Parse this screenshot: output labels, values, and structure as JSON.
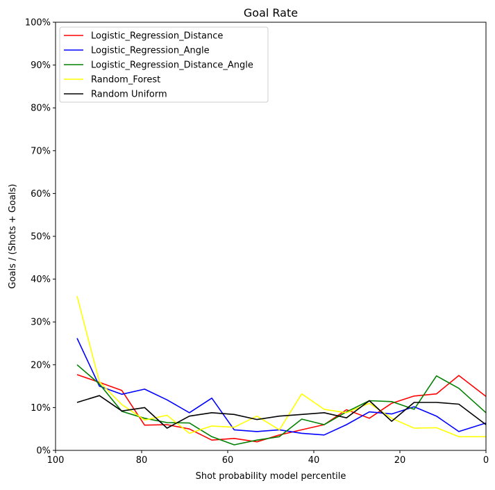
{
  "chart_data": {
    "type": "line",
    "title": "Goal Rate",
    "xlabel": "Shot probability model percentile",
    "ylabel": "Goals / (Shots + Goals)",
    "xlim": [
      100,
      0
    ],
    "ylim": [
      0,
      1
    ],
    "x_ticks": [
      100,
      80,
      60,
      40,
      20,
      0
    ],
    "x_tick_labels": [
      "100",
      "80",
      "60",
      "40",
      "20",
      "0"
    ],
    "y_ticks": [
      0,
      0.1,
      0.2,
      0.3,
      0.4,
      0.5,
      0.6,
      0.7,
      0.8,
      0.9,
      1.0
    ],
    "y_tick_labels": [
      "0%",
      "10%",
      "20%",
      "30%",
      "40%",
      "50%",
      "60%",
      "70%",
      "80%",
      "90%",
      "100%"
    ],
    "grid": false,
    "legend_position": "upper-left",
    "x": [
      95,
      89.8,
      84.6,
      79.3,
      74.1,
      68.9,
      63.7,
      58.5,
      53.2,
      48,
      42.8,
      37.6,
      32.4,
      27.1,
      21.9,
      16.7,
      11.5,
      6.3,
      0
    ],
    "series": [
      {
        "name": "Logistic_Regression_Distance",
        "color": "#ff0000",
        "values": [
          0.177,
          0.159,
          0.14,
          0.059,
          0.06,
          0.05,
          0.024,
          0.028,
          0.02,
          0.036,
          0.048,
          0.06,
          0.095,
          0.075,
          0.11,
          0.127,
          0.132,
          0.175,
          0.126
        ]
      },
      {
        "name": "Logistic_Regression_Angle",
        "color": "#0000ff",
        "values": [
          0.262,
          0.15,
          0.131,
          0.143,
          0.118,
          0.088,
          0.122,
          0.048,
          0.044,
          0.048,
          0.04,
          0.036,
          0.06,
          0.09,
          0.085,
          0.102,
          0.08,
          0.044,
          0.064
        ]
      },
      {
        "name": "Logistic_Regression_Distance_Angle",
        "color": "#008000",
        "values": [
          0.2,
          0.155,
          0.091,
          0.075,
          0.065,
          0.064,
          0.032,
          0.013,
          0.024,
          0.032,
          0.073,
          0.06,
          0.09,
          0.116,
          0.114,
          0.096,
          0.174,
          0.145,
          0.088
        ]
      },
      {
        "name": "Random_Forest",
        "color": "#ffff00",
        "values": [
          0.36,
          0.16,
          0.107,
          0.071,
          0.082,
          0.04,
          0.057,
          0.054,
          0.08,
          0.048,
          0.132,
          0.096,
          0.088,
          0.11,
          0.075,
          0.052,
          0.053,
          0.032,
          0.032
        ]
      },
      {
        "name": "Random Uniform",
        "color": "#000000",
        "values": [
          0.112,
          0.128,
          0.092,
          0.1,
          0.052,
          0.08,
          0.088,
          0.084,
          0.072,
          0.08,
          0.084,
          0.088,
          0.076,
          0.116,
          0.068,
          0.112,
          0.112,
          0.108,
          0.06
        ]
      }
    ]
  }
}
